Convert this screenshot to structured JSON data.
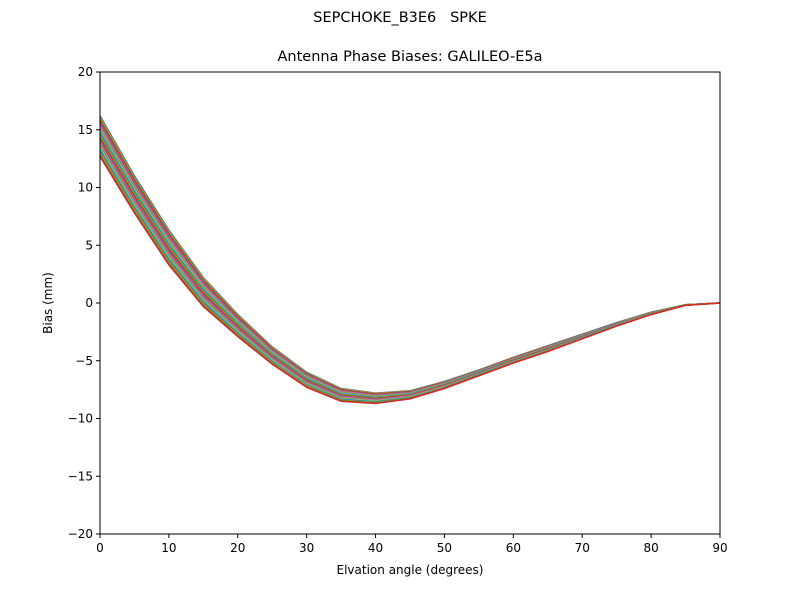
{
  "figure": {
    "suptitle": "SEPCHOKE_B3E6   SPKE",
    "title": "Antenna Phase Biases: GALILEO-E5a"
  },
  "chart_data": {
    "type": "line",
    "title": "Antenna Phase Biases: GALILEO-E5a",
    "suptitle": "SEPCHOKE_B3E6   SPKE",
    "xlabel": "Elvation angle (degrees)",
    "ylabel": "Bias (mm)",
    "xlim": [
      0,
      90
    ],
    "ylim": [
      -20,
      20
    ],
    "xticks": [
      0,
      10,
      20,
      30,
      40,
      50,
      60,
      70,
      80,
      90
    ],
    "yticks": [
      -20,
      -15,
      -10,
      -5,
      0,
      5,
      10,
      15,
      20
    ],
    "grid": false,
    "legend": null,
    "x": [
      0,
      5,
      10,
      15,
      20,
      25,
      30,
      35,
      40,
      45,
      50,
      55,
      60,
      65,
      70,
      75,
      80,
      85,
      90
    ],
    "envelope": {
      "upper": [
        16.2,
        11.0,
        6.3,
        2.2,
        -1.0,
        -3.8,
        -6.0,
        -7.4,
        -7.8,
        -7.6,
        -6.8,
        -5.8,
        -4.7,
        -3.7,
        -2.7,
        -1.7,
        -0.8,
        -0.15,
        0.0
      ],
      "lower": [
        12.7,
        7.8,
        3.3,
        -0.3,
        -2.9,
        -5.3,
        -7.3,
        -8.5,
        -8.7,
        -8.3,
        -7.4,
        -6.3,
        -5.2,
        -4.2,
        -3.1,
        -2.0,
        -1.0,
        -0.2,
        0.0
      ]
    },
    "series_count_estimate": 24,
    "series_colors": [
      "#1f77b4",
      "#ff7f0e",
      "#2ca02c",
      "#d62728",
      "#9467bd",
      "#8c564b",
      "#e377c2",
      "#7f7f7f",
      "#bcbd22",
      "#17becf"
    ],
    "notes": "Many overlapping lines (one per azimuth) forming a band; upper/lower give band envelope in mm."
  }
}
